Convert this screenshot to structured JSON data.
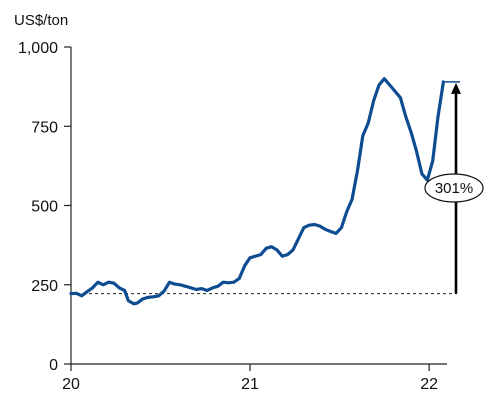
{
  "chart_data": {
    "type": "line",
    "title": "",
    "xlabel": "",
    "ylabel": "US$/ton",
    "xlim": [
      20,
      22.1
    ],
    "ylim": [
      0,
      1000
    ],
    "grid": false,
    "legend": "none",
    "x_ticks": [
      {
        "value": 20,
        "label": "20"
      },
      {
        "value": 21,
        "label": "21"
      },
      {
        "value": 22,
        "label": "22"
      }
    ],
    "y_ticks": [
      {
        "value": 0,
        "label": "0"
      },
      {
        "value": 250,
        "label": "250"
      },
      {
        "value": 500,
        "label": "500"
      },
      {
        "value": 750,
        "label": "750"
      },
      {
        "value": 1000,
        "label": "1,000"
      }
    ],
    "series": [
      {
        "color": "#0e4c92",
        "x": [
          20.0,
          20.03,
          20.06,
          20.09,
          20.12,
          20.15,
          20.18,
          20.21,
          20.24,
          20.27,
          20.3,
          20.32,
          20.35,
          20.37,
          20.4,
          20.43,
          20.46,
          20.49,
          20.52,
          20.55,
          20.58,
          20.61,
          20.64,
          20.67,
          20.7,
          20.73,
          20.76,
          20.79,
          20.82,
          20.85,
          20.88,
          20.91,
          20.94,
          20.97,
          21.0,
          21.03,
          21.06,
          21.09,
          21.12,
          21.15,
          21.18,
          21.21,
          21.24,
          21.27,
          21.3,
          21.33,
          21.36,
          21.39,
          21.42,
          21.45,
          21.48,
          21.51,
          21.54,
          21.57,
          21.6,
          21.63,
          21.66,
          21.69,
          21.72,
          21.75,
          21.78,
          21.81,
          21.84,
          21.87,
          21.9,
          21.93,
          21.96,
          21.99,
          22.02,
          22.05,
          22.08
        ],
        "y": [
          222,
          223,
          215,
          228,
          240,
          258,
          250,
          258,
          255,
          240,
          232,
          200,
          190,
          192,
          205,
          210,
          212,
          215,
          230,
          258,
          252,
          250,
          245,
          240,
          235,
          238,
          232,
          240,
          245,
          258,
          256,
          258,
          270,
          310,
          335,
          340,
          345,
          365,
          370,
          360,
          340,
          345,
          360,
          395,
          430,
          438,
          440,
          435,
          425,
          418,
          412,
          430,
          480,
          520,
          610,
          720,
          760,
          830,
          880,
          900,
          880,
          860,
          840,
          780,
          730,
          670,
          600,
          580,
          640,
          780,
          890
        ]
      }
    ],
    "baseline": {
      "value": 222,
      "style": "dashed"
    },
    "annotation": {
      "label": "301%",
      "from": 222,
      "to": 890
    }
  }
}
